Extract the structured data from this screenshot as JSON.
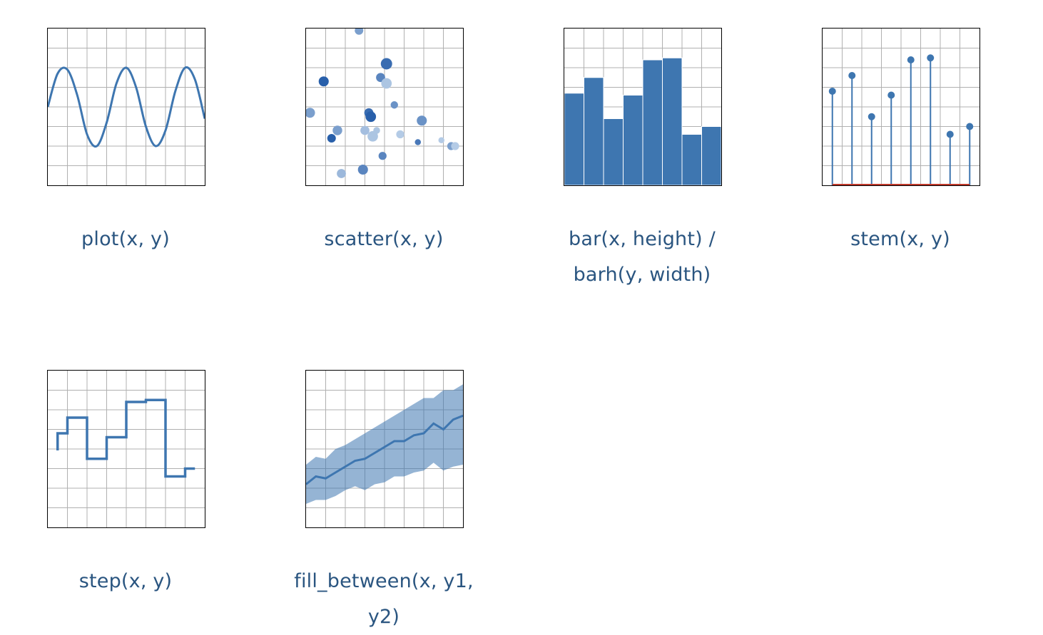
{
  "gallery": {
    "items": [
      {
        "id": "plot",
        "label": "plot(x, y)"
      },
      {
        "id": "scatter",
        "label": "scatter(x, y)"
      },
      {
        "id": "bar",
        "label": "bar(x, height) / barh(y, width)"
      },
      {
        "id": "stem",
        "label": "stem(x, y)"
      },
      {
        "id": "step",
        "label": "step(x, y)"
      },
      {
        "id": "fill_between",
        "label": "fill_between(x, y1, y2)"
      }
    ]
  },
  "colors": {
    "series": "#3e76b0",
    "grid": "#b0b0b0",
    "frame": "#000000",
    "caption": "#2a5580",
    "stem_baseline": "#c0392b"
  },
  "chart_data": [
    {
      "type": "line",
      "ylim": [
        0,
        8
      ],
      "xlim": [
        0,
        8
      ],
      "x": [
        0,
        0.5,
        1,
        1.5,
        2,
        2.5,
        3,
        3.5,
        4,
        4.5,
        5,
        5.5,
        6,
        6.5,
        7,
        7.5,
        8
      ],
      "y": [
        4,
        5.7,
        5.9,
        4.6,
        2.6,
        2.0,
        3.2,
        5.2,
        6.0,
        5.0,
        3.0,
        2.0,
        2.8,
        4.8,
        6.0,
        5.4,
        3.4
      ]
    },
    {
      "type": "scatter",
      "xlim": [
        0,
        8
      ],
      "ylim": [
        0,
        8
      ],
      "points": [
        {
          "x": 2.7,
          "y": 7.9,
          "s": 40,
          "c": 0.5
        },
        {
          "x": 4.1,
          "y": 6.2,
          "s": 70,
          "c": 0.9
        },
        {
          "x": 0.9,
          "y": 5.3,
          "s": 55,
          "c": 1.0
        },
        {
          "x": 3.8,
          "y": 5.5,
          "s": 45,
          "c": 0.7
        },
        {
          "x": 4.1,
          "y": 5.2,
          "s": 60,
          "c": 0.2
        },
        {
          "x": 4.5,
          "y": 4.1,
          "s": 30,
          "c": 0.6
        },
        {
          "x": 0.2,
          "y": 3.7,
          "s": 55,
          "c": 0.5
        },
        {
          "x": 3.2,
          "y": 3.7,
          "s": 45,
          "c": 0.9
        },
        {
          "x": 3.3,
          "y": 3.5,
          "s": 60,
          "c": 1.0
        },
        {
          "x": 5.9,
          "y": 3.3,
          "s": 55,
          "c": 0.6
        },
        {
          "x": 1.6,
          "y": 2.8,
          "s": 50,
          "c": 0.5
        },
        {
          "x": 3.0,
          "y": 2.8,
          "s": 45,
          "c": 0.25
        },
        {
          "x": 3.6,
          "y": 2.8,
          "s": 25,
          "c": 0.2
        },
        {
          "x": 1.3,
          "y": 2.4,
          "s": 40,
          "c": 1.0
        },
        {
          "x": 3.4,
          "y": 2.5,
          "s": 60,
          "c": 0.2
        },
        {
          "x": 4.8,
          "y": 2.6,
          "s": 35,
          "c": 0.15
        },
        {
          "x": 5.7,
          "y": 2.2,
          "s": 20,
          "c": 0.8
        },
        {
          "x": 6.9,
          "y": 2.3,
          "s": 20,
          "c": 0.15
        },
        {
          "x": 7.4,
          "y": 2.0,
          "s": 35,
          "c": 0.5
        },
        {
          "x": 7.6,
          "y": 2.0,
          "s": 35,
          "c": 0.15
        },
        {
          "x": 3.9,
          "y": 1.5,
          "s": 35,
          "c": 0.7
        },
        {
          "x": 2.9,
          "y": 0.8,
          "s": 55,
          "c": 0.7
        },
        {
          "x": 1.8,
          "y": 0.6,
          "s": 45,
          "c": 0.3
        }
      ]
    },
    {
      "type": "bar",
      "xlim": [
        0.5,
        8.5
      ],
      "ylim": [
        0,
        8
      ],
      "x": [
        1,
        2,
        3,
        4,
        5,
        6,
        7,
        8
      ],
      "values": [
        4.7,
        5.5,
        3.4,
        4.6,
        6.4,
        6.5,
        2.6,
        3.0
      ]
    },
    {
      "type": "line",
      "subtype": "stem",
      "xlim": [
        0,
        8
      ],
      "ylim": [
        0,
        8
      ],
      "x": [
        0.5,
        1.5,
        2.5,
        3.5,
        4.5,
        5.5,
        6.5,
        7.5
      ],
      "y": [
        4.8,
        5.6,
        3.5,
        4.6,
        6.4,
        6.5,
        2.6,
        3.0
      ]
    },
    {
      "type": "line",
      "subtype": "step",
      "xlim": [
        0,
        8
      ],
      "ylim": [
        0,
        8
      ],
      "x": [
        0.5,
        1.5,
        2.5,
        3.5,
        4.5,
        5.5,
        6.5,
        7.5
      ],
      "y": [
        4.8,
        5.6,
        3.5,
        4.6,
        6.4,
        6.5,
        2.6,
        3.0
      ]
    },
    {
      "type": "area",
      "subtype": "fill_between",
      "xlim": [
        0,
        8
      ],
      "ylim": [
        0,
        8
      ],
      "x": [
        0,
        0.5,
        1,
        1.5,
        2,
        2.5,
        3,
        3.5,
        4,
        4.5,
        5,
        5.5,
        6,
        6.5,
        7,
        7.5,
        8
      ],
      "y": [
        2.2,
        2.6,
        2.5,
        2.8,
        3.1,
        3.4,
        3.5,
        3.8,
        4.1,
        4.4,
        4.4,
        4.7,
        4.8,
        5.3,
        5.0,
        5.5,
        5.7
      ],
      "y1": [
        1.2,
        1.4,
        1.4,
        1.6,
        1.9,
        2.1,
        1.9,
        2.2,
        2.3,
        2.6,
        2.6,
        2.8,
        2.9,
        3.3,
        2.9,
        3.1,
        3.2
      ],
      "y2": [
        3.2,
        3.6,
        3.5,
        4.0,
        4.2,
        4.5,
        4.8,
        5.1,
        5.4,
        5.7,
        6.0,
        6.3,
        6.6,
        6.6,
        7.0,
        7.0,
        7.3
      ]
    }
  ]
}
